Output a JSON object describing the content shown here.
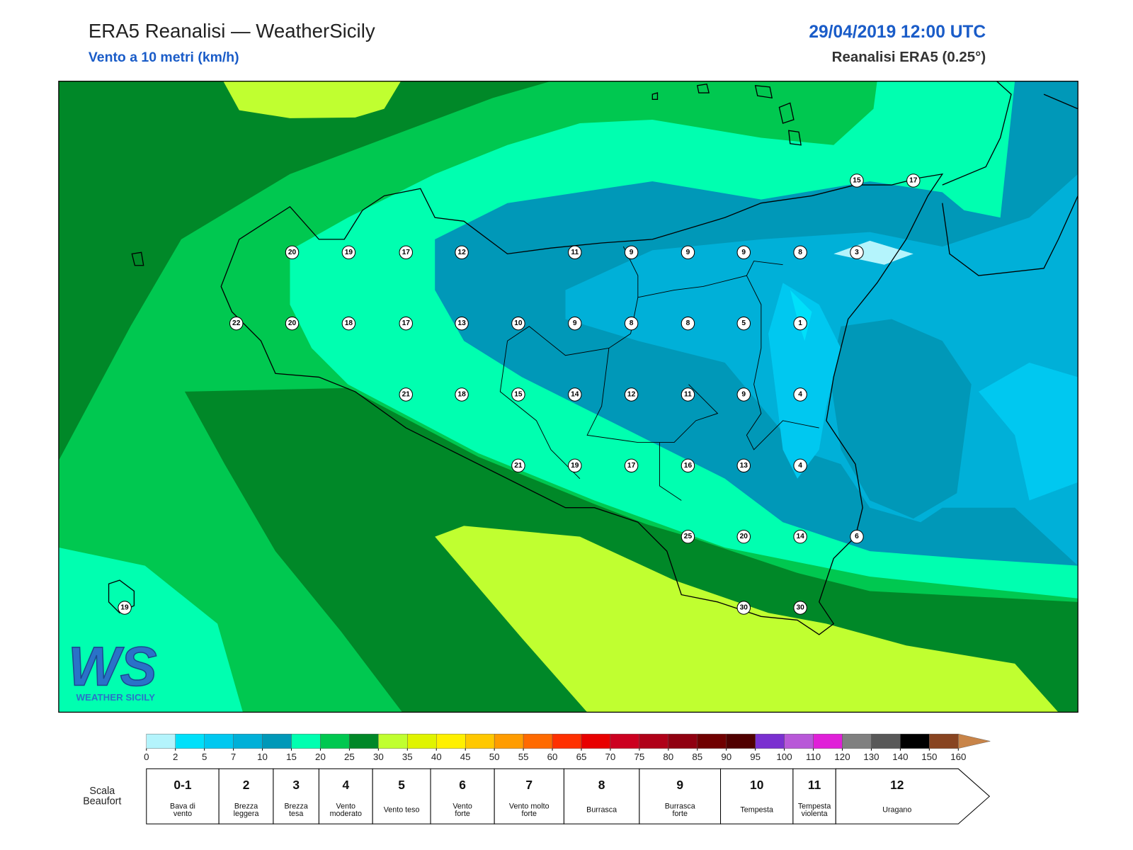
{
  "header": {
    "title": "ERA5 Reanalisi — WeatherSicily",
    "subtitle": "Vento a 10 metri (km/h)",
    "date": "29/04/2019 12:00 UTC",
    "source": "Reanalisi ERA5 (0.25°)"
  },
  "stations": [
    15,
    17,
    20,
    19,
    17,
    12,
    11,
    9,
    9,
    9,
    8,
    3,
    22,
    20,
    18,
    17,
    13,
    10,
    9,
    8,
    8,
    5,
    1,
    21,
    18,
    15,
    14,
    12,
    11,
    9,
    4,
    21,
    19,
    17,
    16,
    13,
    4,
    25,
    20,
    14,
    6,
    19,
    30,
    30
  ],
  "logo": {
    "mark": "WS",
    "name": "WEATHER SICILY"
  },
  "colorbar": {
    "ticks": [
      0,
      2,
      5,
      7,
      10,
      15,
      20,
      25,
      30,
      35,
      40,
      45,
      50,
      55,
      60,
      65,
      70,
      75,
      80,
      85,
      90,
      95,
      100,
      110,
      120,
      130,
      140,
      150,
      160
    ],
    "colors": [
      "#b4f4fc",
      "#00e0fa",
      "#00c8f0",
      "#00b0d8",
      "#0098b8",
      "#00ffb0",
      "#00c850",
      "#008828",
      "#c0ff30",
      "#e0f400",
      "#fff000",
      "#ffc800",
      "#ff9c00",
      "#ff6a00",
      "#ff3000",
      "#e80000",
      "#cc0020",
      "#b00018",
      "#900010",
      "#700000",
      "#500000",
      "#7a30d0",
      "#b858d8",
      "#e020d8",
      "#808080",
      "#585858",
      "#000000",
      "#884420",
      "#c88448"
    ],
    "extend_color": "#c88448"
  },
  "beaufort": {
    "label": [
      "Scala",
      "Beaufort"
    ],
    "forces": [
      {
        "force": "0-1",
        "description": [
          "Bava di",
          "vento"
        ]
      },
      {
        "force": "2",
        "description": [
          "Brezza",
          "leggera"
        ]
      },
      {
        "force": "3",
        "description": [
          "Brezza",
          "tesa"
        ]
      },
      {
        "force": "4",
        "description": [
          "Vento",
          "moderato"
        ]
      },
      {
        "force": "5",
        "description": [
          "Vento teso"
        ]
      },
      {
        "force": "6",
        "description": [
          "Vento",
          "forte"
        ]
      },
      {
        "force": "7",
        "description": [
          "Vento molto",
          "forte"
        ]
      },
      {
        "force": "8",
        "description": [
          "Burrasca"
        ]
      },
      {
        "force": "9",
        "description": [
          "Burrasca",
          "forte"
        ]
      },
      {
        "force": "10",
        "description": [
          "Tempesta"
        ]
      },
      {
        "force": "11",
        "description": [
          "Tempesta",
          "violenta"
        ]
      },
      {
        "force": "12",
        "description": [
          "Uragano"
        ]
      }
    ]
  }
}
